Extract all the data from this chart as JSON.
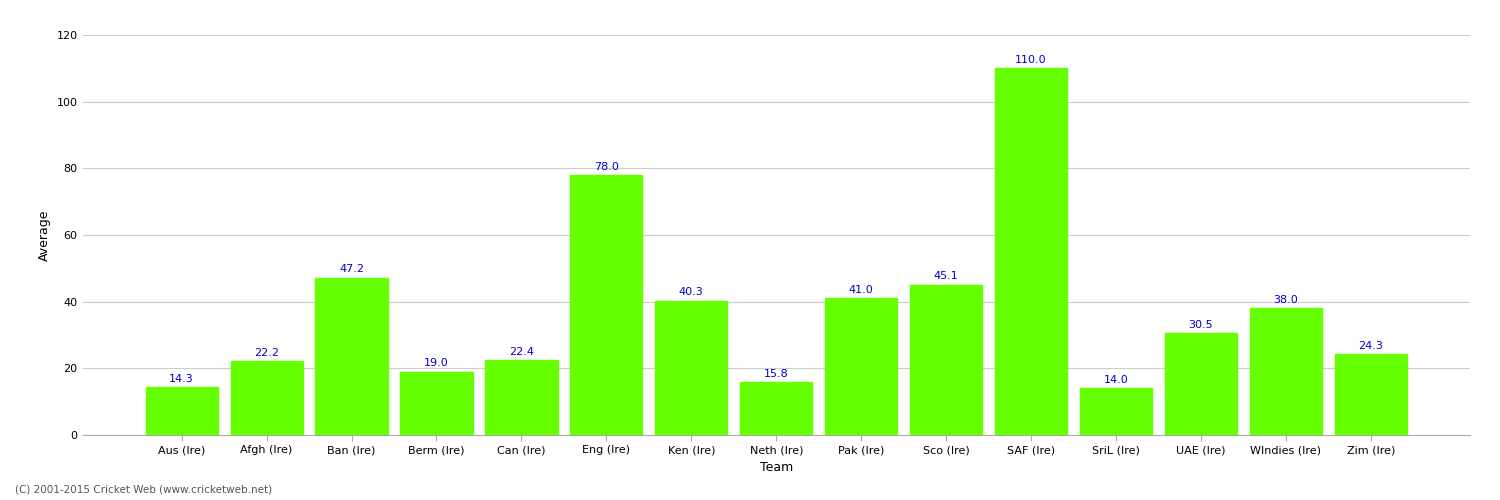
{
  "xlabel": "Team",
  "ylabel": "Average",
  "categories": [
    "Aus (Ire)",
    "Afgh (Ire)",
    "Ban (Ire)",
    "Berm (Ire)",
    "Can (Ire)",
    "Eng (Ire)",
    "Ken (Ire)",
    "Neth (Ire)",
    "Pak (Ire)",
    "Sco (Ire)",
    "SAF (Ire)",
    "SriL (Ire)",
    "UAE (Ire)",
    "WIndies (Ire)",
    "Zim (Ire)"
  ],
  "values": [
    14.3,
    22.2,
    47.2,
    19.0,
    22.4,
    78.0,
    40.3,
    15.8,
    41.0,
    45.1,
    110.0,
    14.0,
    30.5,
    38.0,
    24.3
  ],
  "bar_color": "#66ff00",
  "label_color": "#0000cc",
  "background_color": "#ffffff",
  "grid_color": "#cccccc",
  "ylim": [
    0,
    120
  ],
  "yticks": [
    0,
    20,
    40,
    60,
    80,
    100,
    120
  ],
  "label_fontsize": 8,
  "axis_label_fontsize": 9,
  "tick_fontsize": 8,
  "bar_width": 0.85,
  "footer": "(C) 2001-2015 Cricket Web (www.cricketweb.net)"
}
